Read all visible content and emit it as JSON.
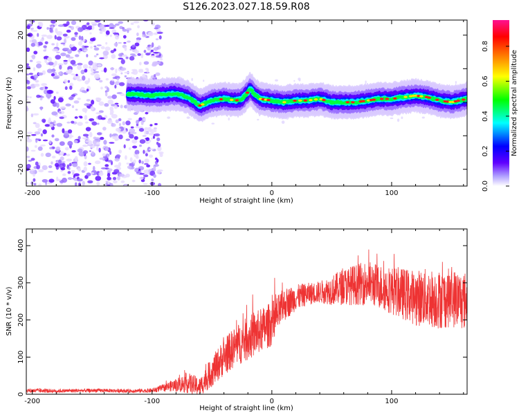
{
  "title": "S126.2023.027.18.59.R08",
  "colors": {
    "snr_line": "#ee3333",
    "axis": "#000000"
  },
  "chart_data": [
    {
      "type": "heatmap",
      "xlabel": "Height of straight line (km)",
      "ylabel": "Frequency (Hz)",
      "xlim": [
        -205,
        163
      ],
      "ylim": [
        -25,
        24.5
      ],
      "xticks": [
        -200,
        -100,
        0,
        100
      ],
      "xtick_labels": [
        "-200",
        "-100",
        "0",
        "100"
      ],
      "yticks": [
        -20,
        -10,
        0,
        10,
        20
      ],
      "ytick_labels": [
        "-20",
        "-10",
        "0",
        "10",
        "20"
      ],
      "colorbar": {
        "label": "Normalized spectral amplitude",
        "range": [
          0.0,
          0.95
        ],
        "ticks": [
          "0.0",
          "0.2",
          "0.4",
          "0.6",
          "0.8"
        ],
        "tick_values": [
          0.0,
          0.2,
          0.4,
          0.6,
          0.8
        ],
        "colormap": [
          "#ffffff",
          "#b0a0ff",
          "#6000ff",
          "#0000ff",
          "#00ffff",
          "#00ff00",
          "#ffff00",
          "#ff8000",
          "#ff0000",
          "#ff1090"
        ]
      },
      "noise_region_x": [
        -205,
        -92
      ],
      "ridge": {
        "x": [
          -120,
          -100,
          -80,
          -70,
          -60,
          -50,
          -40,
          -30,
          -25,
          -20,
          -18,
          -15,
          -10,
          0,
          10,
          20,
          30,
          40,
          50,
          60,
          70,
          80,
          90,
          100,
          110,
          120,
          130,
          140,
          150,
          163
        ],
        "y": [
          2.5,
          2.0,
          2.5,
          1.5,
          -1.0,
          0.5,
          1.0,
          0.5,
          1.0,
          3.0,
          4.0,
          2.5,
          1.0,
          0.5,
          0.0,
          0.5,
          0.5,
          1.0,
          0.0,
          0.0,
          0.0,
          0.5,
          1.0,
          1.0,
          1.5,
          2.0,
          1.5,
          0.5,
          0.0,
          1.0
        ]
      }
    },
    {
      "type": "line",
      "xlabel": "Height of straight line (km)",
      "ylabel": "SNR (10 * v/v)",
      "xlim": [
        -205,
        163
      ],
      "ylim": [
        0,
        445
      ],
      "xticks": [
        -200,
        -100,
        0,
        100
      ],
      "xtick_labels": [
        "-200",
        "-100",
        "0",
        "100"
      ],
      "yticks": [
        0,
        100,
        200,
        300,
        400
      ],
      "ytick_labels": [
        "0",
        "100",
        "200",
        "300",
        "400"
      ],
      "series": [
        {
          "x": [
            -205,
            -180,
            -160,
            -140,
            -120,
            -100,
            -90,
            -80,
            -70,
            -60,
            -50,
            -40,
            -30,
            -20,
            -10,
            0,
            10,
            20,
            30,
            40,
            50,
            60,
            70,
            80,
            90,
            100,
            110,
            120,
            130,
            140,
            150,
            163
          ],
          "y": [
            10,
            9,
            10,
            10,
            9,
            10,
            18,
            25,
            30,
            20,
            60,
            100,
            130,
            150,
            170,
            190,
            240,
            260,
            270,
            275,
            280,
            290,
            295,
            300,
            290,
            280,
            270,
            260,
            260,
            255,
            260,
            250
          ],
          "spread": [
            6,
            5,
            5,
            5,
            5,
            6,
            10,
            18,
            28,
            25,
            40,
            50,
            55,
            60,
            60,
            60,
            45,
            35,
            30,
            30,
            40,
            50,
            55,
            60,
            60,
            65,
            70,
            75,
            80,
            80,
            80,
            80
          ]
        }
      ]
    }
  ]
}
